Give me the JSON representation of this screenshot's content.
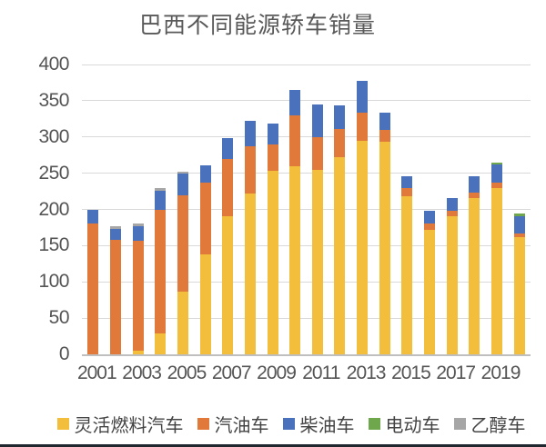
{
  "chart_data": {
    "type": "bar",
    "stacked": true,
    "title": "巴西不同能源轿车销量",
    "categories": [
      "2001",
      "2002",
      "2003",
      "2004",
      "2005",
      "2006",
      "2007",
      "2008",
      "2009",
      "2010",
      "2011",
      "2012",
      "2013",
      "2014",
      "2015",
      "2016",
      "2017",
      "2018",
      "2019",
      "2020"
    ],
    "x_tick_labels": [
      "2001",
      "2003",
      "2005",
      "2007",
      "2009",
      "2011",
      "2013",
      "2015",
      "2017",
      "2019"
    ],
    "y_ticks": [
      400,
      350,
      300,
      250,
      200,
      150,
      100,
      50,
      0
    ],
    "ylim": [
      0,
      400
    ],
    "grid": true,
    "legend_position": "bottom",
    "series": [
      {
        "name": "灵活燃料汽车",
        "color": "#F3BE3B",
        "values": [
          0,
          0,
          5,
          29,
          86,
          138,
          191,
          222,
          253,
          260,
          254,
          272,
          295,
          294,
          218,
          172,
          191,
          216,
          230,
          162
        ]
      },
      {
        "name": "汽油车",
        "color": "#E0793A",
        "values": [
          180,
          158,
          152,
          170,
          133,
          99,
          78,
          65,
          37,
          70,
          46,
          39,
          38,
          16,
          12,
          9,
          7,
          7,
          7,
          5
        ]
      },
      {
        "name": "柴油车",
        "color": "#4A72BC",
        "values": [
          20,
          15,
          20,
          27,
          30,
          24,
          29,
          35,
          28,
          35,
          45,
          32,
          44,
          23,
          16,
          17,
          18,
          23,
          25,
          24
        ]
      },
      {
        "name": "电动车",
        "color": "#6FA84C",
        "values": [
          0,
          0,
          0,
          0,
          0,
          0,
          0,
          0,
          0,
          0,
          0,
          0,
          0,
          0,
          0,
          0,
          0,
          0,
          3,
          3
        ]
      },
      {
        "name": "乙醇车",
        "color": "#A6A6A6",
        "values": [
          0,
          4,
          4,
          4,
          3,
          0,
          0,
          0,
          0,
          0,
          0,
          0,
          0,
          0,
          0,
          0,
          0,
          0,
          0,
          0
        ]
      }
    ]
  },
  "colors": {
    "background": "#FFFFFF",
    "text": "#595959",
    "grid": "#D9D9D9",
    "axis": "#BFBFBF",
    "bottom_strip": "#20262E"
  }
}
